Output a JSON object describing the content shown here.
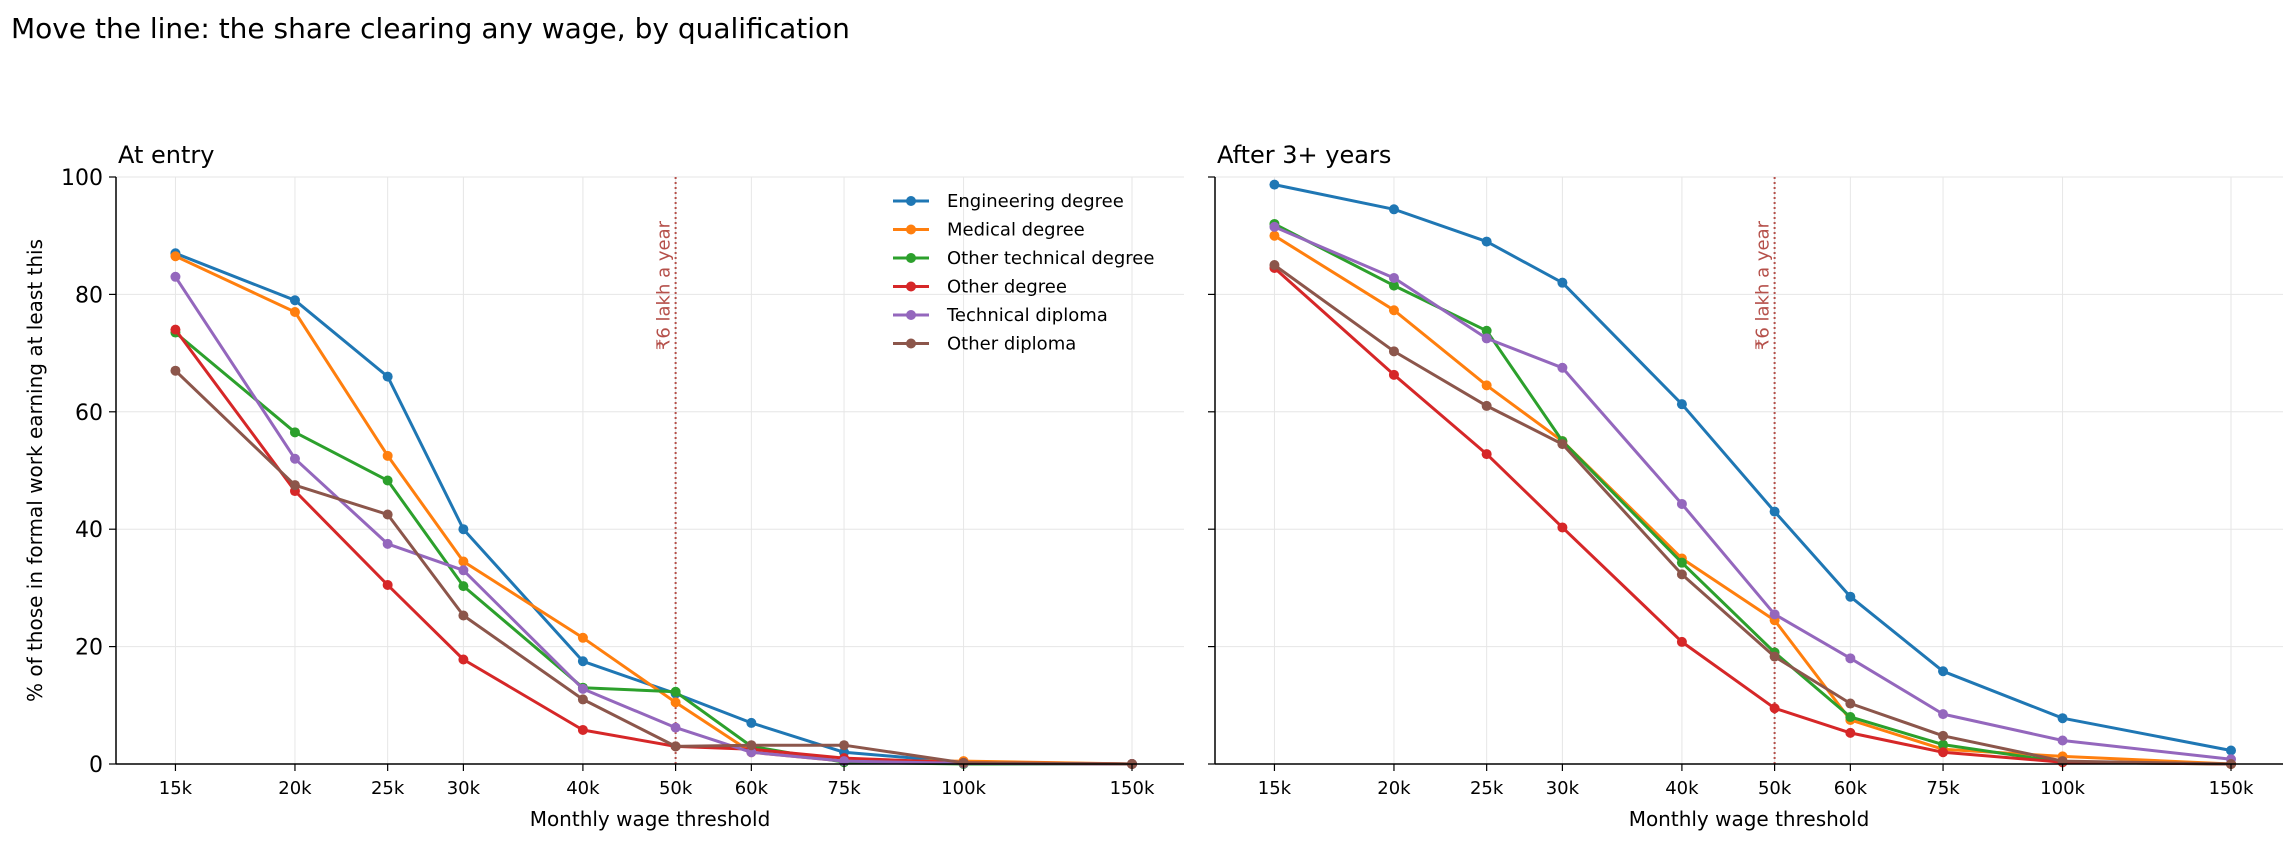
{
  "title": "Move the line: the share clearing any wage, by qualification",
  "chart_data": [
    {
      "type": "line",
      "title": "At entry",
      "xlabel": "Monthly wage threshold",
      "ylabel": "% of those in formal work earning at least this",
      "x_scale": "log",
      "xlim": [
        13000,
        170000
      ],
      "ylim": [
        0,
        100
      ],
      "grid": true,
      "legend": "top-right",
      "x": [
        15000,
        20000,
        25000,
        30000,
        40000,
        50000,
        60000,
        75000,
        100000,
        150000
      ],
      "x_tick_labels": [
        "15k",
        "20k",
        "25k",
        "30k",
        "40k",
        "50k",
        "60k",
        "75k",
        "100k",
        "150k"
      ],
      "y_ticks": [
        0,
        20,
        40,
        60,
        80,
        100
      ],
      "reference_line": {
        "x": 50000,
        "label": "₹6 lakh a year",
        "color": "#b5504a"
      },
      "series": [
        {
          "name": "Engineering degree",
          "color": "#1f77b4",
          "values": [
            87,
            79,
            66,
            40,
            17.5,
            12,
            7,
            2,
            0.3,
            0
          ]
        },
        {
          "name": "Medical degree",
          "color": "#ff7f0e",
          "values": [
            86.5,
            77,
            52.5,
            34.5,
            21.5,
            10.5,
            2,
            0.5,
            0.5,
            0
          ]
        },
        {
          "name": "Other technical degree",
          "color": "#2ca02c",
          "values": [
            73.5,
            56.5,
            48.3,
            30.3,
            13,
            12.3,
            3,
            0.3,
            0,
            0
          ]
        },
        {
          "name": "Other degree",
          "color": "#d62728",
          "values": [
            74,
            46.5,
            30.5,
            17.8,
            5.8,
            3,
            2.5,
            1,
            0.2,
            0
          ]
        },
        {
          "name": "Technical diploma",
          "color": "#9467bd",
          "values": [
            83,
            52,
            37.5,
            33,
            12.8,
            6.2,
            2,
            0.5,
            0.1,
            0
          ]
        },
        {
          "name": "Other diploma",
          "color": "#8c564b",
          "values": [
            67,
            47.5,
            42.5,
            25.3,
            11,
            3,
            3.2,
            3.2,
            0.2,
            0
          ]
        }
      ]
    },
    {
      "type": "line",
      "title": "After 3+ years",
      "xlabel": "Monthly wage threshold",
      "ylabel": "",
      "x_scale": "log",
      "xlim": [
        13000,
        170000
      ],
      "ylim": [
        0,
        100
      ],
      "grid": true,
      "x": [
        15000,
        20000,
        25000,
        30000,
        40000,
        50000,
        60000,
        75000,
        100000,
        150000
      ],
      "x_tick_labels": [
        "15k",
        "20k",
        "25k",
        "30k",
        "40k",
        "50k",
        "60k",
        "75k",
        "100k",
        "150k"
      ],
      "y_ticks": [
        0,
        20,
        40,
        60,
        80,
        100
      ],
      "reference_line": {
        "x": 50000,
        "label": "₹6 lakh a year",
        "color": "#b5504a"
      },
      "series": [
        {
          "name": "Engineering degree",
          "color": "#1f77b4",
          "values": [
            98.7,
            94.5,
            89,
            82,
            61.3,
            43,
            28.5,
            15.8,
            7.8,
            2.3
          ]
        },
        {
          "name": "Medical degree",
          "color": "#ff7f0e",
          "values": [
            90,
            77.3,
            64.5,
            55,
            35,
            24.5,
            7.5,
            2.5,
            1.3,
            0
          ]
        },
        {
          "name": "Other technical degree",
          "color": "#2ca02c",
          "values": [
            92,
            81.5,
            73.8,
            55,
            34.3,
            19,
            8,
            3.3,
            0.3,
            0
          ]
        },
        {
          "name": "Other degree",
          "color": "#d62728",
          "values": [
            84.5,
            66.3,
            52.8,
            40.3,
            20.8,
            9.5,
            5.3,
            2,
            0.3,
            0
          ]
        },
        {
          "name": "Technical diploma",
          "color": "#9467bd",
          "values": [
            91.5,
            82.8,
            72.5,
            67.5,
            44.3,
            25.5,
            18,
            8.5,
            4,
            0.8
          ]
        },
        {
          "name": "Other diploma",
          "color": "#8c564b",
          "values": [
            85,
            70.3,
            61,
            54.5,
            32.3,
            18.3,
            10.3,
            4.8,
            0.5,
            0
          ]
        }
      ]
    }
  ]
}
